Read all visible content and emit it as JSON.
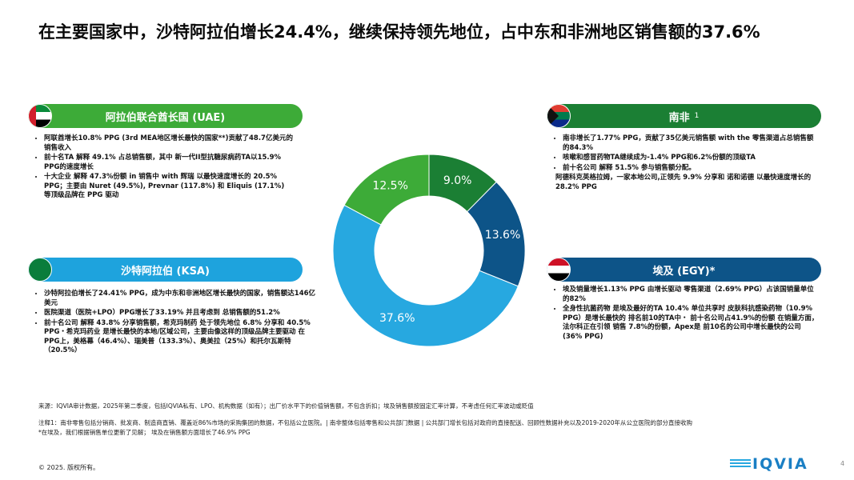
{
  "title": "在主要国家中，沙特阿拉伯增长24.4%，继续保持领先地位，占中东和非洲地区销售额的37.6%",
  "panels": [
    {
      "header": "阿拉伯联合酋长国 (UAE)",
      "bullets": [
        "阿联酋增长10.8% PPG (3rd MEA地区增长最快的国家**)贡献了48.7亿美元的销售收入",
        "前十名TA 解释 49.1% 占总销售额，其中 新一代II型抗糖尿病药TA以15.9% PPG的速度增长",
        "十大企业 解释 47.3%份额 in 销售中 with 辉瑞 以最快速度增长的 20.5% PPG；主要由 Nuret (49.5%), Prevnar (117.8%) 和 Eliquis (17.1%) 等顶级品牌在 PPG 驱动"
      ]
    },
    {
      "header": "沙特阿拉伯 (KSA)",
      "bullets": [
        "沙特阿拉伯增长了24.41% PPG，成为中东和非洲地区增长最快的国家，销售额达146亿美元",
        "医院渠道（医院+LPO）PPG增长了33.19% 并且考虑到 总销售额的51.2%",
        "前十名公司 解释 43.8% 分享销售额，希克玛制药 处于领先地位 6.8% 分享和 40.5% PPG・希克玛药业 是增长最快的本地/区域公司，主要由像这样的顶级品牌主要驱动 在PPG上，美格幕（46.4%）、瑞美普（133.3%）、奥美拉（25%）和托尔瓦斯特（20.5%）"
      ]
    },
    {
      "header": "南非",
      "superscript": "1",
      "bullets": [
        "南非增长了1.77% PPG，贡献了35亿美元销售额 with the 零售渠道占总销售额的84.3%",
        "咳嗽和感冒药物TA继续成为-1.4% PPG和6.2%份额的顶级TA",
        "前十名公司 解释 51.5% 参与销售额分配。"
      ],
      "note": "阿德科克英格拉姆，一家本地公司,正领先 9.9% 分享和 诺和诺德 以最快速度增长的 28.2% PPG"
    },
    {
      "header": "埃及 (EGY)*",
      "bullets": [
        "埃及销量增长1.13% PPG 由增长驱动 零售渠道（2.69% PPG）占该国销量单位的82%",
        "全身性抗菌药物 是埃及最好的TA 10.4% 单位共享时 皮肤科抗感染药物（10.9% PPG）是增长最快的 排名前10的TA中・ 前十名公司占41.9%的份额 在销量方面， 法尔科正在引领 销售 7.8%的份额，Apex是 前10名的公司中增长最快的公司 (36% PPG)"
      ]
    }
  ],
  "chart_data": {
    "type": "donut",
    "values": [
      9.0,
      13.6,
      37.6,
      12.5
    ],
    "value_labels": [
      "9.0%",
      "13.6%",
      "37.6%",
      "12.5%"
    ],
    "colors": [
      "#1b7f34",
      "#0d5488",
      "#27a8e0",
      "#3dab38"
    ]
  },
  "footnotes": [
    "来源：IQVIA审计数据，2025年第二季度，包括IQVIA私有、LPO、机构数据（如有）；出厂价水平下的价值销售额，不包含折扣；埃及销售额按固定汇率计算，不考虑任何汇率波动或贬值",
    "注释1：南非零售包括分销商、批发商、制造商直销、覆盖近86%市场的采购集团的数据，不包括公立医院。| 南非整体包括零售和公共部门数据 | 公共部门增长包括对政府的直接配送、回顾性数据补充以及2019-2020年从公立医院的部分直接收购",
    "*在埃及，我们根据销售单位更新了见解； 埃及在销售额方面增长了46.9% PPG"
  ],
  "copyright": "© 2025. 版权所有。",
  "logo": "IQVIA",
  "page_number": "4"
}
